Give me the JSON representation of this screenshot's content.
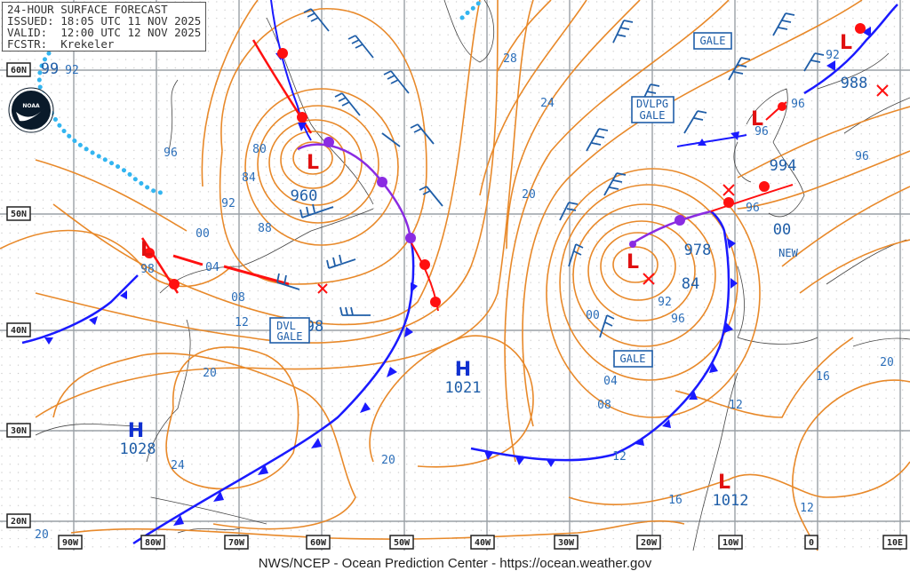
{
  "header": {
    "title": "24-HOUR SURFACE FORECAST",
    "issued": "ISSUED: 18:05 UTC 11 NOV 2025",
    "valid": "VALID:  12:00 UTC 12 NOV 2025",
    "forecaster": "FCSTR:  Krekeler"
  },
  "logo": {
    "text": "NOAA"
  },
  "credit": "NWS/NCEP - Ocean Prediction Center - https://ocean.weather.gov",
  "colors": {
    "isobar": "#e8892a",
    "cold_front": "#1a1aff",
    "warm_front": "#ff1010",
    "occluded_front": "#8a2be2",
    "ice_edge": "#33b5f0",
    "text": "#1f5ea8"
  },
  "lat_labels": [
    "60N",
    "50N",
    "40N",
    "30N",
    "20N"
  ],
  "lon_labels": [
    "90W",
    "80W",
    "70W",
    "60W",
    "50W",
    "40W",
    "30W",
    "20W",
    "10W",
    "0",
    "10E"
  ],
  "systems": [
    {
      "type": "L",
      "pressure": "960"
    },
    {
      "type": "L",
      "pressure": "98"
    },
    {
      "type": "L",
      "pressure": "978"
    },
    {
      "type": "L",
      "pressure": "1012"
    },
    {
      "type": "L",
      "pressure": "96"
    },
    {
      "type": "L",
      "pressure": "92"
    },
    {
      "type": "H",
      "pressure": "1021"
    },
    {
      "type": "H",
      "pressure": "1028"
    },
    {
      "type": "",
      "pressure": "994"
    },
    {
      "type": "",
      "pressure": "988"
    },
    {
      "type": "",
      "pressure": "98"
    },
    {
      "type": "",
      "pressure": "84"
    },
    {
      "type": "",
      "pressure": "00"
    },
    {
      "type": "",
      "pressure": "96"
    }
  ],
  "warnings": [
    {
      "line1": "GALE",
      "line2": ""
    },
    {
      "line1": "DVLPG",
      "line2": "GALE"
    },
    {
      "line1": "DVL",
      "line2": "GALE"
    },
    {
      "line1": "GALE",
      "line2": ""
    }
  ],
  "new_label": "NEW",
  "isobar_labels": [
    "99",
    "92",
    "96",
    "80",
    "84",
    "92",
    "88",
    "00",
    "04",
    "08",
    "12",
    "20",
    "24",
    "20",
    "28",
    "24",
    "20",
    "96",
    "96",
    "96",
    "96",
    "00",
    "92",
    "96",
    "04",
    "08",
    "12",
    "12",
    "16",
    "20",
    "16",
    "12",
    "20",
    "92"
  ]
}
